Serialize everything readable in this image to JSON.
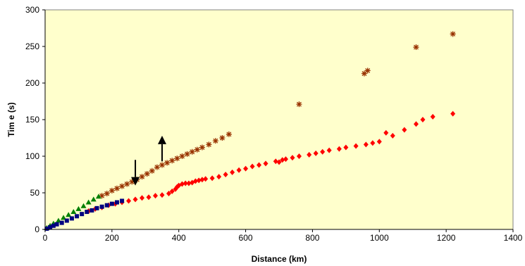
{
  "chart_data": {
    "type": "scatter",
    "title": "",
    "xlabel": "Distance (km)",
    "ylabel": "Tim e (s)",
    "xlim": [
      0,
      1400
    ],
    "ylim": [
      0,
      300
    ],
    "xticks": [
      0,
      200,
      400,
      600,
      800,
      1000,
      1200,
      1400
    ],
    "yticks": [
      0,
      50,
      100,
      150,
      200,
      250,
      300
    ],
    "grid": false,
    "legend": "none",
    "background_color": "#FFFFCC",
    "series": [
      {
        "marker": "diamond",
        "color": "#FF0000",
        "points": [
          [
            130,
            25
          ],
          [
            150,
            28
          ],
          [
            170,
            30
          ],
          [
            190,
            33
          ],
          [
            210,
            35
          ],
          [
            230,
            37
          ],
          [
            250,
            39
          ],
          [
            270,
            41
          ],
          [
            290,
            43
          ],
          [
            310,
            44
          ],
          [
            330,
            46
          ],
          [
            350,
            47
          ],
          [
            370,
            49
          ],
          [
            380,
            52
          ],
          [
            390,
            55
          ],
          [
            395,
            58
          ],
          [
            400,
            60
          ],
          [
            410,
            62
          ],
          [
            420,
            63
          ],
          [
            430,
            63
          ],
          [
            440,
            64
          ],
          [
            450,
            66
          ],
          [
            460,
            67
          ],
          [
            470,
            68
          ],
          [
            480,
            69
          ],
          [
            500,
            70
          ],
          [
            520,
            72
          ],
          [
            540,
            75
          ],
          [
            560,
            78
          ],
          [
            580,
            81
          ],
          [
            600,
            83
          ],
          [
            620,
            86
          ],
          [
            640,
            88
          ],
          [
            660,
            90
          ],
          [
            690,
            93
          ],
          [
            700,
            92
          ],
          [
            710,
            95
          ],
          [
            720,
            96
          ],
          [
            740,
            98
          ],
          [
            760,
            100
          ],
          [
            790,
            102
          ],
          [
            810,
            104
          ],
          [
            830,
            106
          ],
          [
            850,
            108
          ],
          [
            880,
            110
          ],
          [
            900,
            112
          ],
          [
            930,
            114
          ],
          [
            960,
            116
          ],
          [
            980,
            118
          ],
          [
            1000,
            120
          ],
          [
            1040,
            128
          ],
          [
            1075,
            136
          ],
          [
            1110,
            144
          ],
          [
            1130,
            150
          ],
          [
            1160,
            154
          ],
          [
            1220,
            158
          ],
          [
            1020,
            132
          ]
        ]
      },
      {
        "marker": "asterisk",
        "color": "#993300",
        "points": [
          [
            170,
            46
          ],
          [
            185,
            49
          ],
          [
            200,
            53
          ],
          [
            215,
            56
          ],
          [
            230,
            59
          ],
          [
            245,
            62
          ],
          [
            260,
            65
          ],
          [
            275,
            68
          ],
          [
            290,
            72
          ],
          [
            305,
            76
          ],
          [
            320,
            80
          ],
          [
            335,
            85
          ],
          [
            350,
            88
          ],
          [
            365,
            91
          ],
          [
            380,
            94
          ],
          [
            395,
            97
          ],
          [
            410,
            100
          ],
          [
            425,
            103
          ],
          [
            440,
            106
          ],
          [
            455,
            109
          ],
          [
            470,
            112
          ],
          [
            490,
            116
          ],
          [
            510,
            121
          ],
          [
            530,
            125
          ],
          [
            550,
            130
          ],
          [
            760,
            171
          ],
          [
            955,
            213
          ],
          [
            965,
            217
          ],
          [
            1110,
            249
          ],
          [
            1220,
            267
          ]
        ]
      },
      {
        "marker": "triangle",
        "color": "#008000",
        "points": [
          [
            5,
            2
          ],
          [
            15,
            5
          ],
          [
            25,
            8
          ],
          [
            40,
            12
          ],
          [
            55,
            16
          ],
          [
            70,
            20
          ],
          [
            85,
            24
          ],
          [
            100,
            28
          ],
          [
            115,
            32
          ],
          [
            130,
            37
          ],
          [
            145,
            41
          ],
          [
            160,
            45
          ]
        ]
      },
      {
        "marker": "square",
        "color": "#000080",
        "points": [
          [
            5,
            1
          ],
          [
            15,
            3
          ],
          [
            25,
            5
          ],
          [
            35,
            7
          ],
          [
            50,
            9
          ],
          [
            65,
            12
          ],
          [
            80,
            15
          ],
          [
            95,
            18
          ],
          [
            110,
            21
          ],
          [
            125,
            24
          ],
          [
            140,
            26
          ],
          [
            155,
            29
          ],
          [
            170,
            31
          ],
          [
            185,
            33
          ],
          [
            200,
            35
          ],
          [
            215,
            37
          ],
          [
            230,
            39
          ]
        ]
      }
    ],
    "annotations": [
      {
        "shape": "arrow",
        "direction": "down",
        "x": 270,
        "y_from": 95,
        "y_to": 60
      },
      {
        "shape": "arrow",
        "direction": "up",
        "x": 350,
        "y_from": 93,
        "y_to": 128
      }
    ]
  }
}
